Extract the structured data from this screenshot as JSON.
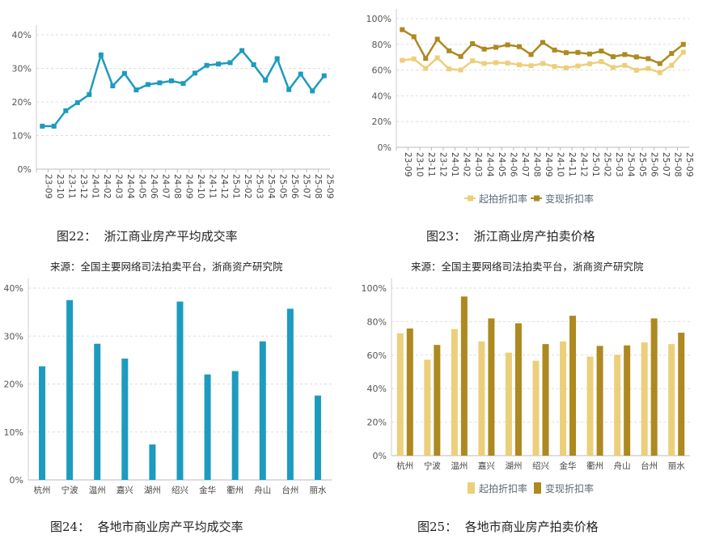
{
  "figures": [
    {
      "caption": "图22：  浙江商业房产平均成交率",
      "source": ""
    },
    {
      "caption": "图23：  浙江商业房产拍卖价格",
      "source": "来源：全国主要网络司法拍卖平台，浙商资产研究院"
    },
    {
      "caption": "图24：  各地市商业房产平均成交率",
      "source": ""
    },
    {
      "caption": "图25：  各地市商业房产拍卖价格",
      "source": "来源：全国主要网络司法拍卖平台，浙商资产研究院"
    }
  ],
  "source_left": "来源：全国主要网络司法拍卖平台，浙商资产研究院",
  "colors": {
    "teal": "#1d9bbf",
    "light_gold": "#eccf7a",
    "dark_gold": "#ad8920",
    "grid": "#dddddd"
  },
  "chart_data": [
    {
      "type": "line",
      "title": "",
      "categories": [
        "23-09",
        "23-10",
        "23-11",
        "23-12",
        "24-01",
        "24-02",
        "24-03",
        "24-04",
        "24-05",
        "24-06",
        "24-07",
        "24-08",
        "24-09",
        "24-10",
        "24-11",
        "24-12",
        "25-01",
        "25-02",
        "25-03",
        "25-04",
        "25-05",
        "25-06",
        "25-07",
        "25-08",
        "25-09"
      ],
      "series": [
        {
          "values": [
            12.8,
            12.8,
            17.4,
            19.8,
            22.2,
            34.0,
            24.8,
            28.5,
            23.6,
            25.2,
            25.7,
            26.3,
            25.5,
            28.6,
            30.9,
            31.3,
            31.7,
            35.3,
            31.1,
            26.5,
            32.9,
            23.7,
            28.3,
            23.3,
            27.8
          ]
        }
      ],
      "ylim": [
        0,
        40
      ],
      "yticks": [
        "0%",
        "10%",
        "20%",
        "30%",
        "40%"
      ],
      "grid": true,
      "legend": "none"
    },
    {
      "type": "line",
      "title": "",
      "categories": [
        "23-09",
        "23-10",
        "23-11",
        "23-12",
        "24-01",
        "24-02",
        "24-03",
        "24-04",
        "24-05",
        "24-06",
        "24-07",
        "24-08",
        "24-09",
        "24-10",
        "24-11",
        "24-12",
        "25-01",
        "25-02",
        "25-03",
        "25-04",
        "25-05",
        "25-06",
        "25-07",
        "25-08",
        "25-09"
      ],
      "series": [
        {
          "name": "起拍折扣率",
          "values": [
            67.6,
            68.7,
            61.3,
            69.5,
            60.9,
            60.1,
            67.2,
            65.1,
            65.8,
            65.5,
            64.1,
            63.4,
            65.1,
            62.8,
            61.8,
            63.2,
            64.9,
            66.6,
            62.0,
            63.7,
            59.9,
            61.3,
            58.0,
            63.7,
            73.9
          ]
        },
        {
          "name": "变现折扣率",
          "values": [
            91.4,
            85.9,
            69.1,
            84.0,
            75.0,
            70.6,
            80.5,
            76.3,
            77.7,
            79.6,
            78.2,
            72.1,
            81.5,
            75.6,
            73.5,
            73.7,
            72.5,
            74.8,
            70.4,
            72.1,
            70.2,
            68.9,
            65.1,
            72.9,
            80.0
          ]
        }
      ],
      "ylim": [
        0,
        100
      ],
      "yticks": [
        "0%",
        "20%",
        "40%",
        "60%",
        "80%",
        "100%"
      ],
      "grid": true,
      "legend": "bottom"
    },
    {
      "type": "bar",
      "title": "",
      "categories": [
        "杭州",
        "宁波",
        "温州",
        "嘉兴",
        "湖州",
        "绍兴",
        "金华",
        "衢州",
        "舟山",
        "台州",
        "丽水"
      ],
      "series": [
        {
          "values": [
            23.7,
            37.5,
            28.4,
            25.3,
            7.4,
            37.2,
            22.0,
            22.7,
            28.9,
            35.7,
            17.6
          ]
        }
      ],
      "ylim": [
        0,
        40
      ],
      "yticks": [
        "0%",
        "10%",
        "20%",
        "30%",
        "40%"
      ],
      "grid": true,
      "legend": "none"
    },
    {
      "type": "bar",
      "title": "",
      "categories": [
        "杭州",
        "宁波",
        "温州",
        "嘉兴",
        "湖州",
        "绍兴",
        "金华",
        "衢州",
        "舟山",
        "台州",
        "丽水"
      ],
      "series": [
        {
          "name": "起拍折扣率",
          "values": [
            73.0,
            57.3,
            75.6,
            68.2,
            61.5,
            56.7,
            68.2,
            59.1,
            60.2,
            67.6,
            66.6
          ]
        },
        {
          "name": "变现折扣率",
          "values": [
            75.9,
            66.1,
            95.0,
            81.9,
            79.0,
            66.6,
            83.5,
            65.5,
            65.8,
            81.9,
            73.4
          ]
        }
      ],
      "ylim": [
        0,
        100
      ],
      "yticks": [
        "0%",
        "20%",
        "40%",
        "60%",
        "80%",
        "100%"
      ],
      "grid": true,
      "legend": "bottom"
    }
  ]
}
